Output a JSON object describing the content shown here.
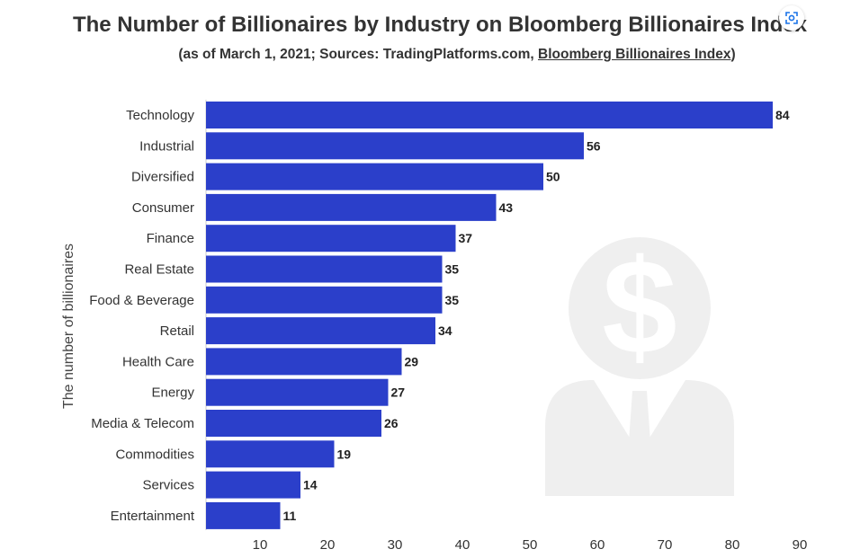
{
  "chart_data": {
    "type": "bar",
    "orientation": "horizontal",
    "title": "The Number of Billionaires by Industry on Bloomberg Billionaires Index",
    "subtitle_prefix": "(as of March 1, 2021; Sources: TradingPlatforms.com, ",
    "subtitle_link": "Bloomberg Billionaires Index",
    "subtitle_suffix": ")",
    "ylabel": "The number of billionaires",
    "categories": [
      "Technology",
      "Industrial",
      "Diversified",
      "Consumer",
      "Finance",
      "Real Estate",
      "Food & Beverage",
      "Retail",
      "Health Care",
      "Energy",
      "Media & Telecom",
      "Commodities",
      "Services",
      "Entertainment"
    ],
    "values": [
      84,
      56,
      50,
      43,
      37,
      35,
      35,
      34,
      29,
      27,
      26,
      19,
      14,
      11
    ],
    "xticks": [
      10,
      20,
      30,
      40,
      50,
      60,
      70,
      80,
      90
    ],
    "xlim": [
      0,
      90
    ],
    "grid": false,
    "bar_color": "#2b3fca",
    "background_icon": "businessman-dollar-icon"
  },
  "ui": {
    "lens_icon": "image-search-icon"
  }
}
